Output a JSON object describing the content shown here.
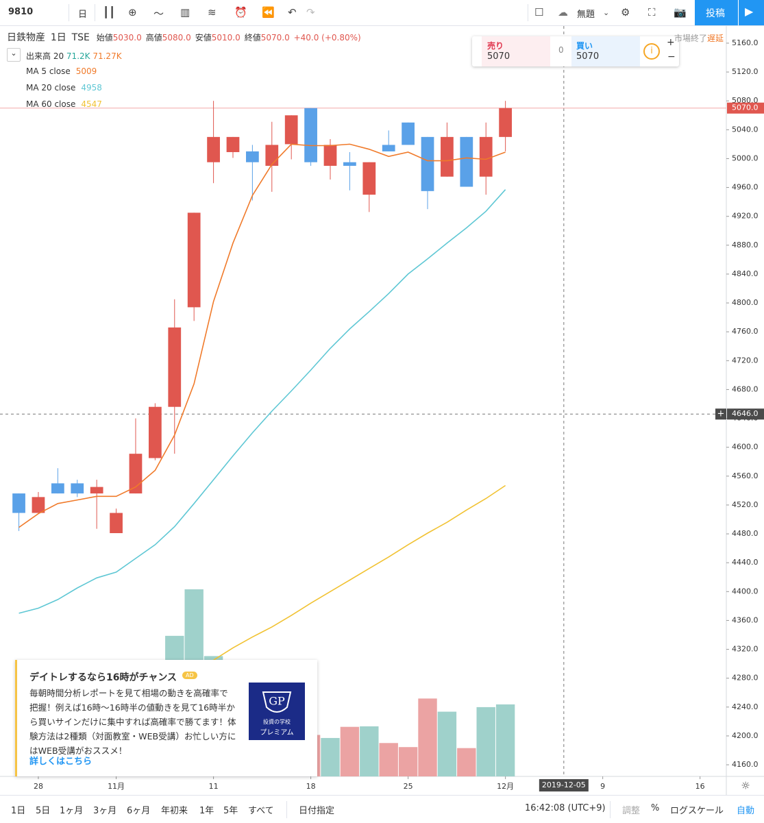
{
  "toolbar": {
    "symbol": "9810",
    "interval": "日",
    "layout_name": "無題",
    "publish": "投稿"
  },
  "legend": {
    "name": "日鉄物産",
    "interval": "1日",
    "exchange": "TSE",
    "ohlc": [
      {
        "label": "始値",
        "value": "5030.0"
      },
      {
        "label": "高値",
        "value": "5080.0"
      },
      {
        "label": "安値",
        "value": "5010.0"
      },
      {
        "label": "終値",
        "value": "5070.0"
      }
    ],
    "change": "+40.0 (+0.80%)"
  },
  "trade": {
    "sell_label": "売り",
    "sell": "5070",
    "spread": "0",
    "buy_label": "買い",
    "buy": "5070"
  },
  "market_status": "市場終了",
  "delay": "遅延",
  "chart_data": {
    "type": "candlestick",
    "x": [
      -1,
      0,
      1,
      2,
      3,
      4,
      5,
      6,
      7,
      8,
      9,
      10,
      11,
      12,
      13,
      14,
      15,
      16,
      17,
      18,
      19,
      20,
      21,
      22,
      23,
      24
    ],
    "open": [
      4536,
      4509,
      4550,
      4550,
      4536,
      4481,
      4536,
      4585,
      4656,
      4794,
      4995,
      5009,
      5010,
      4990,
      5020,
      5070,
      4990,
      4995,
      4950,
      5019,
      5050,
      5030,
      4975,
      5030,
      4975,
      5030
    ],
    "high": [
      4536,
      4538,
      4571,
      4555,
      4555,
      4515,
      4640,
      4661,
      4805,
      4925,
      5080,
      5030,
      5019,
      5051,
      5060,
      5070,
      5027,
      5009,
      4995,
      5039,
      5050,
      5030,
      5050,
      5030,
      5050,
      5080
    ],
    "low": [
      4484,
      4509,
      4536,
      4531,
      4487,
      4481,
      4536,
      4582,
      4591,
      4775,
      4966,
      5001,
      4942,
      4954,
      4999,
      4990,
      4971,
      4956,
      4926,
      5010,
      5019,
      4930,
      4975,
      4961,
      4950,
      5010
    ],
    "close": [
      4509,
      4531,
      4536,
      4536,
      4545,
      4509,
      4591,
      4656,
      4766,
      4925,
      5030,
      5030,
      4995,
      5019,
      5060,
      4995,
      5019,
      4990,
      4995,
      5010,
      5019,
      4955,
      5030,
      4961,
      5030,
      5070
    ],
    "up_color": "#e0574f",
    "down_color": "#5aa1e8",
    "series": [
      {
        "name": "MA 5 close",
        "color": "#f07a2a",
        "last_label": "5009",
        "values": [
          4489,
          4508,
          4522,
          4527,
          4532,
          4532,
          4545,
          4568,
          4617,
          4688,
          4802,
          4883,
          4949,
          4992,
          5020,
          5018,
          5018,
          5020,
          5013,
          5003,
          5009,
          4997,
          4997,
          5001,
          4999,
          5009
        ]
      },
      {
        "name": "MA 20 close",
        "color": "#5ec7d4",
        "last_label": "4958",
        "values": [
          4370,
          4377,
          4389,
          4405,
          4419,
          4427,
          4446,
          4465,
          4490,
          4522,
          4555,
          4588,
          4620,
          4650,
          4678,
          4707,
          4737,
          4764,
          4788,
          4813,
          4840,
          4861,
          4883,
          4904,
          4927,
          4957
        ]
      },
      {
        "name": "MA 60 close",
        "color": "#f1c232",
        "last_label": "4547",
        "values": [
          null,
          null,
          null,
          null,
          null,
          null,
          null,
          null,
          null,
          null,
          4305,
          4322,
          4337,
          4351,
          4367,
          4384,
          4400,
          4416,
          4432,
          4448,
          4465,
          4481,
          4496,
          4513,
          4529,
          4547
        ]
      }
    ],
    "volume": {
      "name": "出来高 20",
      "labels": [
        "71.2K",
        "71.27K"
      ],
      "lim": [
        0,
        742
      ],
      "values": [
        null,
        null,
        null,
        null,
        null,
        null,
        null,
        null,
        139,
        185,
        119,
        null,
        null,
        null,
        null,
        41,
        38,
        49,
        49.5,
        33,
        29,
        77,
        64,
        28,
        68.5,
        71.2
      ],
      "colors": [
        null,
        null,
        null,
        null,
        null,
        null,
        null,
        null,
        "#9fd1cb",
        "#9fd1cb",
        "#9fd1cb",
        null,
        null,
        null,
        null,
        "#eba3a3",
        "#9fd1cb",
        "#eba3a3",
        "#9fd1cb",
        "#eba3a3",
        "#eba3a3",
        "#eba3a3",
        "#9fd1cb",
        "#eba3a3",
        "#9fd1cb",
        "#9fd1cb"
      ]
    },
    "xlim": [
      -1.97,
      35.35
    ],
    "xticks": [
      {
        "value": 0,
        "label": "28"
      },
      {
        "value": 4,
        "label": "11月"
      },
      {
        "value": 9,
        "label": "11"
      },
      {
        "value": 14,
        "label": "18"
      },
      {
        "value": 19,
        "label": "25"
      },
      {
        "value": 24,
        "label": "12月"
      },
      {
        "value": 29,
        "label": "9"
      },
      {
        "value": 34,
        "label": "16"
      }
    ],
    "ylim": [
      4143.9,
      5183.7
    ],
    "yticks": [
      {
        "value": 5160,
        "label": "5160.0"
      },
      {
        "value": 5120,
        "label": "5120.0"
      },
      {
        "value": 5080,
        "label": "5080.0"
      },
      {
        "value": 5040,
        "label": "5040.0"
      },
      {
        "value": 5000,
        "label": "5000.0"
      },
      {
        "value": 4960,
        "label": "4960.0"
      },
      {
        "value": 4920,
        "label": "4920.0"
      },
      {
        "value": 4880,
        "label": "4880.0"
      },
      {
        "value": 4840,
        "label": "4840.0"
      },
      {
        "value": 4800,
        "label": "4800.0"
      },
      {
        "value": 4760,
        "label": "4760.0"
      },
      {
        "value": 4720,
        "label": "4720.0"
      },
      {
        "value": 4680,
        "label": "4680.0"
      },
      {
        "value": 4640,
        "label": "4640.0"
      },
      {
        "value": 4600,
        "label": "4600.0"
      },
      {
        "value": 4560,
        "label": "4560.0"
      },
      {
        "value": 4520,
        "label": "4520.0"
      },
      {
        "value": 4480,
        "label": "4480.0"
      },
      {
        "value": 4440,
        "label": "4440.0"
      },
      {
        "value": 4400,
        "label": "4400.0"
      },
      {
        "value": 4360,
        "label": "4360.0"
      },
      {
        "value": 4320,
        "label": "4320.0"
      },
      {
        "value": 4280,
        "label": "4280.0"
      },
      {
        "value": 4240,
        "label": "4240.0"
      },
      {
        "value": 4200,
        "label": "4200.0"
      },
      {
        "value": 4160,
        "label": "4160.0"
      }
    ],
    "last_price": {
      "value": 5070,
      "label": "5070.0"
    },
    "crosshair": {
      "x": 27,
      "x_label": "2019-12-05",
      "y": 4646,
      "y_label": "4646.0"
    }
  },
  "ad": {
    "title": "デイトレするなら16時がチャンス",
    "badge": "AD",
    "body": "毎朝時間分析レポートを見て相場の動きを高確率で把握！例えば16時〜16時半の値動きを見て16時半から買いサインだけに集中すれば高確率で勝てます！体験方法は2種類（対面教室・WEB受講）お忙しい方にはWEB受講がおススメ！",
    "link": "詳しくはこちら",
    "logo_top": "投資の学校",
    "logo_bottom": "プレミアム"
  },
  "bottom_bar": {
    "ranges": [
      "1日",
      "5日",
      "1ヶ月",
      "3ヶ月",
      "6ヶ月",
      "年初来",
      "1年",
      "5年",
      "すべて"
    ],
    "goto": "日付指定",
    "time": "16:42:08 (UTC+9)",
    "options": [
      "調整",
      "%",
      "ログスケール",
      "自動"
    ]
  }
}
